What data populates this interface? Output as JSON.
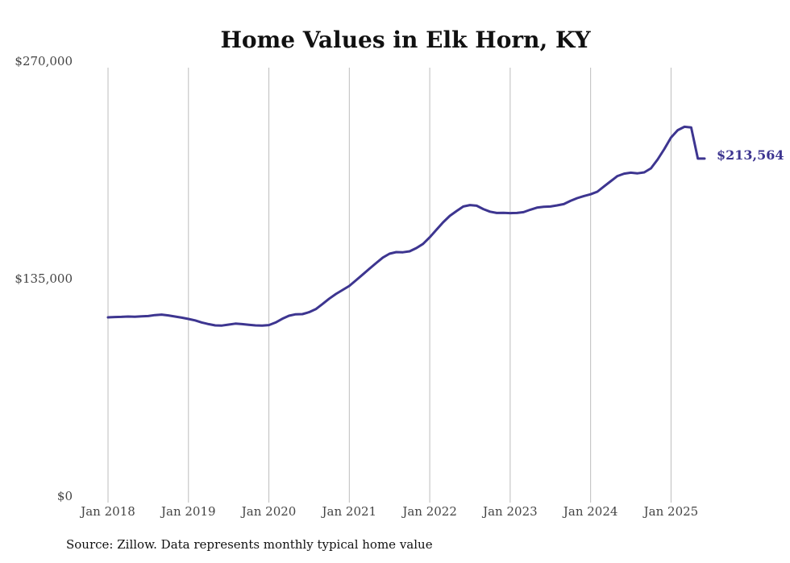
{
  "chart_data": {
    "type": "line",
    "title": "Home Values in Elk Horn, KY",
    "xlabel": "",
    "ylabel": "",
    "ylim": [
      0,
      270000
    ],
    "xlim": [
      "2018-01",
      "2025-06"
    ],
    "grid": {
      "vertical": true,
      "horizontal": false
    },
    "y_ticks": [
      {
        "value": 0,
        "label": "$0"
      },
      {
        "value": 135000,
        "label": "$135,000"
      },
      {
        "value": 270000,
        "label": "$270,000"
      }
    ],
    "x_ticks": [
      {
        "value": "2018-01",
        "label": "Jan 2018"
      },
      {
        "value": "2019-01",
        "label": "Jan 2019"
      },
      {
        "value": "2020-01",
        "label": "Jan 2020"
      },
      {
        "value": "2021-01",
        "label": "Jan 2021"
      },
      {
        "value": "2022-01",
        "label": "Jan 2022"
      },
      {
        "value": "2023-01",
        "label": "Jan 2023"
      },
      {
        "value": "2024-01",
        "label": "Jan 2024"
      },
      {
        "value": "2025-01",
        "label": "Jan 2025"
      }
    ],
    "series": [
      {
        "name": "",
        "color": "#3d3590",
        "end_label": "$213,564",
        "x": [
          "2018-01",
          "2018-02",
          "2018-03",
          "2018-04",
          "2018-05",
          "2018-06",
          "2018-07",
          "2018-08",
          "2018-09",
          "2018-10",
          "2018-11",
          "2018-12",
          "2019-01",
          "2019-02",
          "2019-03",
          "2019-04",
          "2019-05",
          "2019-06",
          "2019-07",
          "2019-08",
          "2019-09",
          "2019-10",
          "2019-11",
          "2019-12",
          "2020-01",
          "2020-02",
          "2020-03",
          "2020-04",
          "2020-05",
          "2020-06",
          "2020-07",
          "2020-08",
          "2020-09",
          "2020-10",
          "2020-11",
          "2020-12",
          "2021-01",
          "2021-02",
          "2021-03",
          "2021-04",
          "2021-05",
          "2021-06",
          "2021-07",
          "2021-08",
          "2021-09",
          "2021-10",
          "2021-11",
          "2021-12",
          "2022-01",
          "2022-02",
          "2022-03",
          "2022-04",
          "2022-05",
          "2022-06",
          "2022-07",
          "2022-08",
          "2022-09",
          "2022-10",
          "2022-11",
          "2022-12",
          "2023-01",
          "2023-02",
          "2023-03",
          "2023-04",
          "2023-05",
          "2023-06",
          "2023-07",
          "2023-08",
          "2023-09",
          "2023-10",
          "2023-11",
          "2023-12",
          "2024-01",
          "2024-02",
          "2024-03",
          "2024-04",
          "2024-05",
          "2024-06",
          "2024-07",
          "2024-08",
          "2024-09",
          "2024-10",
          "2024-11",
          "2024-12",
          "2025-01",
          "2025-02",
          "2025-03",
          "2025-04",
          "2025-05",
          "2025-06"
        ],
        "values": [
          115000,
          115200,
          115300,
          115500,
          115400,
          115600,
          115800,
          116400,
          116700,
          116200,
          115500,
          114800,
          114000,
          113100,
          111800,
          110800,
          110000,
          109900,
          110500,
          111100,
          110800,
          110400,
          110000,
          109900,
          110200,
          111800,
          114100,
          116000,
          116900,
          117000,
          118200,
          120100,
          123300,
          126600,
          129500,
          132000,
          134500,
          138000,
          141600,
          145200,
          148700,
          152100,
          154500,
          155500,
          155400,
          156000,
          158000,
          160600,
          164700,
          169400,
          174000,
          178000,
          181000,
          183800,
          184700,
          184300,
          182200,
          180600,
          179800,
          179900,
          179700,
          179800,
          180300,
          181800,
          183100,
          183600,
          183800,
          184500,
          185300,
          187300,
          189000,
          190300,
          191400,
          193000,
          196300,
          199500,
          202700,
          204200,
          204800,
          204400,
          205000,
          207500,
          213000,
          219500,
          226600,
          231200,
          233300,
          232900,
          213564,
          213564
        ]
      }
    ]
  },
  "footer": {
    "source": "Source: Zillow. Data represents monthly typical home value"
  }
}
